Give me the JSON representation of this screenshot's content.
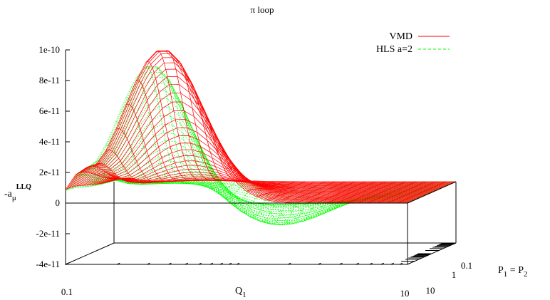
{
  "chart_data": {
    "type": "surface",
    "title": "π loop",
    "zlabel": "-a",
    "zlabel_sub": "μ",
    "zlabel_sup": "LLQ",
    "xlabel": "Q",
    "xlabel_sub": "1",
    "ylabel_left": "P",
    "ylabel_left_sub": "1",
    "ylabel_eq": " = P",
    "ylabel_right_sub": "2",
    "xlim": [
      0.1,
      10
    ],
    "ylim": [
      0.1,
      10
    ],
    "zlim": [
      -4e-11,
      1e-10
    ],
    "x_scale": "log",
    "y_scale": "log",
    "z_ticks": [
      "1e-10",
      "8e-11",
      "6e-11",
      "4e-11",
      "2e-11",
      "0",
      "-2e-11",
      "-4e-11"
    ],
    "z_tick_values": [
      1e-10,
      8e-11,
      6e-11,
      4e-11,
      2e-11,
      0,
      -2e-11,
      -4e-11
    ],
    "x_ticks": [
      "0.1",
      "10"
    ],
    "y_ticks": [
      "0.1",
      "1",
      "10"
    ],
    "series": [
      {
        "name": "VMD",
        "color": "#ff0000",
        "style": "solid",
        "peak_value": 1e-10,
        "peak_at": {
          "Q1": 0.35,
          "P": 0.1
        },
        "min_value": 0
      },
      {
        "name": "HLS a=2",
        "color": "#00ff00",
        "style": "dashed",
        "peak_value": 9e-11,
        "peak_at": {
          "Q1": 0.3,
          "P": 0.1
        },
        "min_value": -2.2e-11,
        "min_at": {
          "Q1": 0.9,
          "P": 0.8
        }
      }
    ],
    "legend_position": "top-right",
    "grid": false
  }
}
